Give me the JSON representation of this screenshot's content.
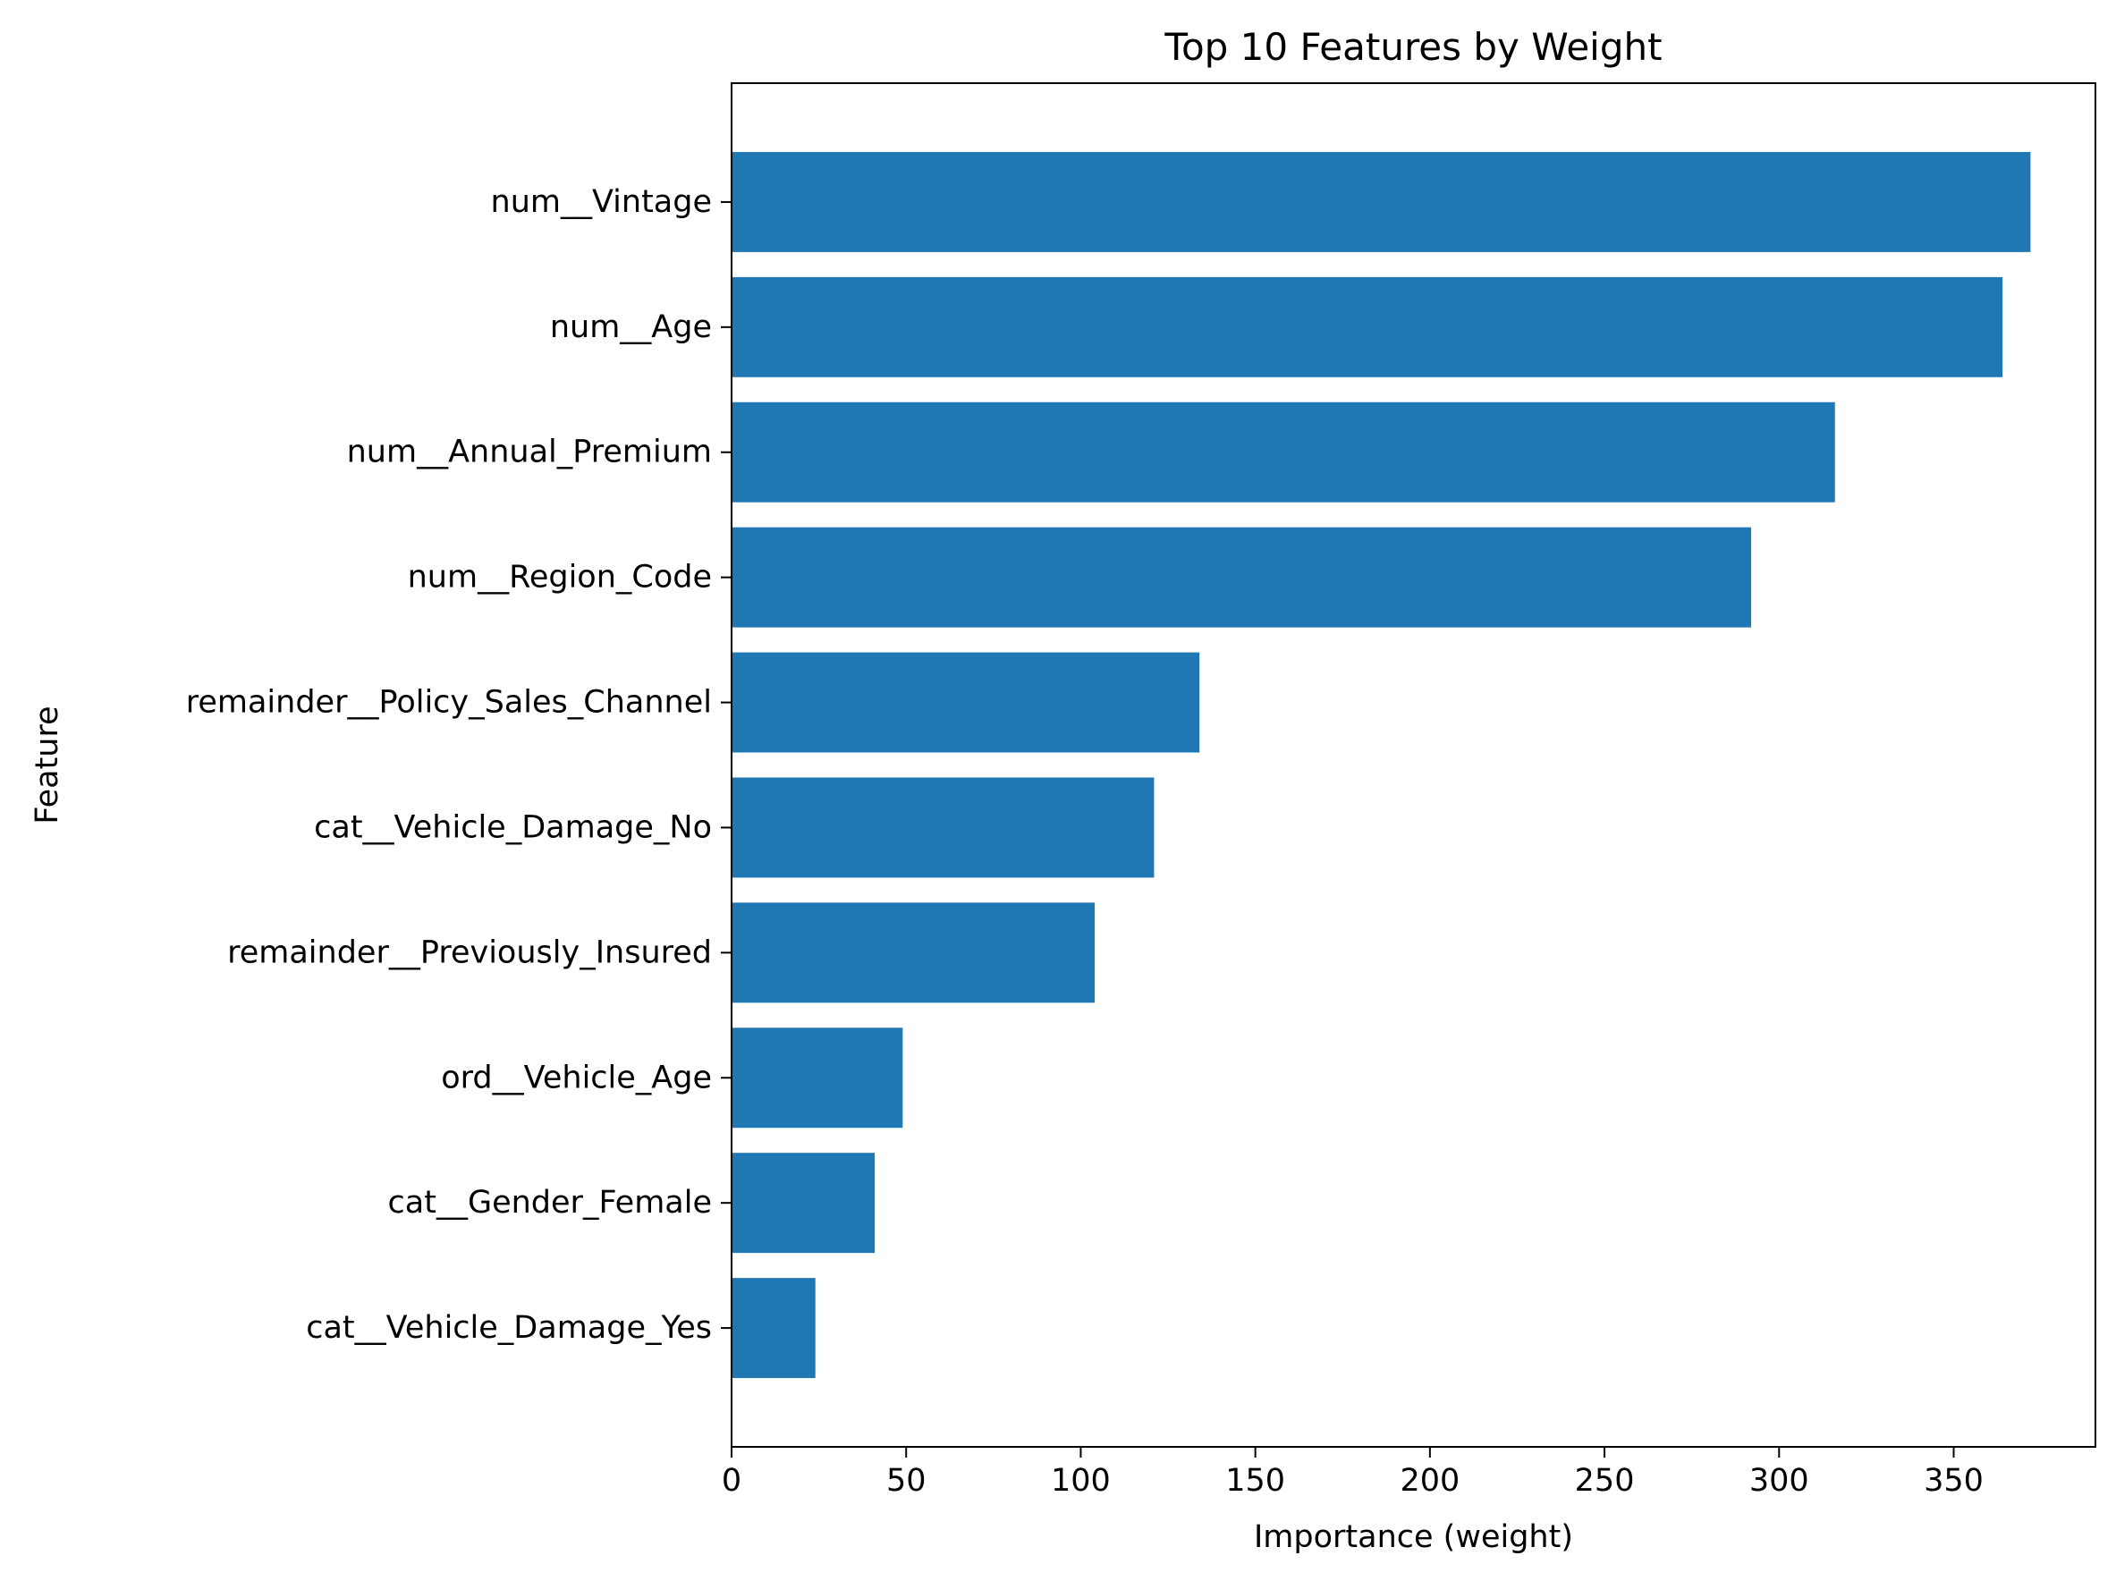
{
  "chart_data": {
    "type": "bar",
    "orientation": "horizontal",
    "title": "Top 10 Features by Weight",
    "xlabel": "Importance (weight)",
    "ylabel": "Feature",
    "categories": [
      "num__Vintage",
      "num__Age",
      "num__Annual_Premium",
      "num__Region_Code",
      "remainder__Policy_Sales_Channel",
      "cat__Vehicle_Damage_No",
      "remainder__Previously_Insured",
      "ord__Vehicle_Age",
      "cat__Gender_Female",
      "cat__Vehicle_Damage_Yes"
    ],
    "values": [
      372,
      364,
      316,
      292,
      134,
      121,
      104,
      49,
      41,
      24
    ],
    "xlim": [
      0,
      390.6
    ],
    "xticks": [
      0,
      50,
      100,
      150,
      200,
      250,
      300,
      350
    ],
    "grid": false,
    "legend": "none",
    "bar_color": "#1f77b4"
  }
}
